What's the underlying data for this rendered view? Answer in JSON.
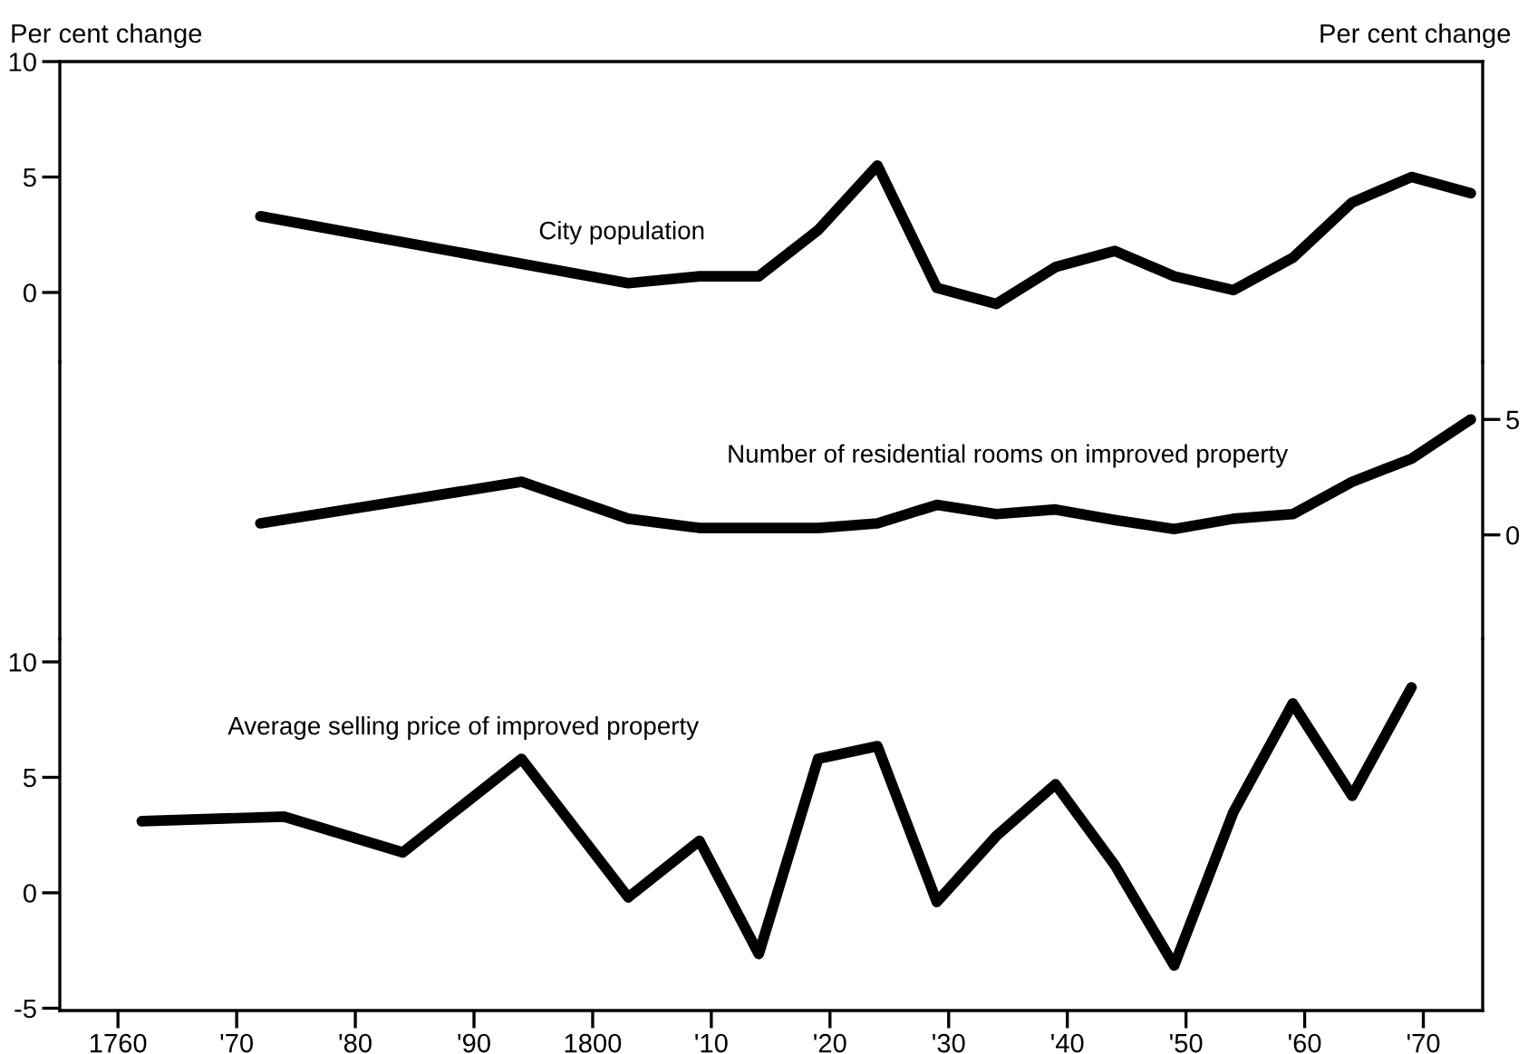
{
  "chart_data": [
    {
      "type": "line",
      "ylabel": "Per cent change",
      "xlim": [
        "1755-02-06",
        "1875-01-01"
      ],
      "ylim": [
        -3,
        10
      ],
      "yticks": [
        0,
        5,
        10
      ],
      "tick_labels": "y",
      "grid": false,
      "legend": false,
      "marker": "none",
      "line_style": "solid",
      "x": [
        "1772",
        "1803",
        "1809",
        "1814",
        "1819",
        "1824",
        "1829",
        "1834",
        "1839",
        "1844",
        "1849",
        "1854",
        "1859",
        "1864",
        "1869",
        "1874"
      ],
      "series": [
        {
          "name": "City population",
          "color": "#000000",
          "values": [
            3.3,
            0.4,
            0.7,
            0.7,
            2.7,
            5.5,
            0.2,
            -0.5,
            1.1,
            1.8,
            0.7,
            0.1,
            1.5,
            3.9,
            5.0,
            4.3
          ]
        }
      ]
    },
    {
      "type": "line",
      "y2label": "Per cent change",
      "xlim": [
        "1755-02-06",
        "1875-01-01"
      ],
      "y2lim": [
        -4.5,
        7.5
      ],
      "y2ticks": [
        0,
        5
      ],
      "tick_labels": "y2",
      "grid": false,
      "legend": false,
      "marker": "none",
      "line_style": "solid",
      "x": [
        "1772",
        "1794",
        "1803",
        "1809",
        "1819",
        "1824",
        "1829",
        "1834",
        "1839",
        "1844",
        "1849",
        "1854",
        "1859",
        "1864",
        "1869",
        "1874"
      ],
      "series": [
        {
          "name": "Number of residential rooms on improved property",
          "axis": "y2",
          "color": "#000000",
          "values": [
            0.5,
            2.3,
            0.7,
            0.3,
            0.3,
            0.5,
            1.3,
            0.9,
            1.1,
            0.65,
            0.25,
            0.7,
            0.9,
            2.3,
            3.3,
            5.0
          ]
        }
      ]
    },
    {
      "type": "line",
      "xlim": [
        "1755-02-06",
        "1875-01-01"
      ],
      "ylim": [
        -5.1,
        11
      ],
      "yticks": [
        -5,
        0,
        5,
        10
      ],
      "xticks": [
        {
          "value": "1760",
          "label": "1760"
        },
        {
          "value": "1770",
          "label": "'70"
        },
        {
          "value": "1780",
          "label": "'80"
        },
        {
          "value": "1790",
          "label": "'90"
        },
        {
          "value": "1800",
          "label": "1800"
        },
        {
          "value": "1810",
          "label": "'10"
        },
        {
          "value": "1820",
          "label": "'20"
        },
        {
          "value": "1830",
          "label": "'30"
        },
        {
          "value": "1840",
          "label": "'40"
        },
        {
          "value": "1850",
          "label": "'50"
        },
        {
          "value": "1860",
          "label": "'60"
        },
        {
          "value": "1870",
          "label": "'70"
        }
      ],
      "grid": false,
      "legend": false,
      "marker": "none",
      "line_style": "solid",
      "x": [
        "1762",
        "1774",
        "1784",
        "1794",
        "1803",
        "1809",
        "1814",
        "1819",
        "1824",
        "1829",
        "1834",
        "1839",
        "1844",
        "1849",
        "1854",
        "1859",
        "1864",
        "1869"
      ],
      "series": [
        {
          "name": "Average selling price of improved property",
          "color": "#000000",
          "values": [
            3.1,
            3.3,
            1.75,
            5.8,
            -0.2,
            2.25,
            -2.65,
            5.8,
            6.35,
            -0.4,
            2.45,
            4.7,
            1.2,
            -3.15,
            3.5,
            8.2,
            4.2,
            8.9
          ]
        }
      ]
    }
  ]
}
